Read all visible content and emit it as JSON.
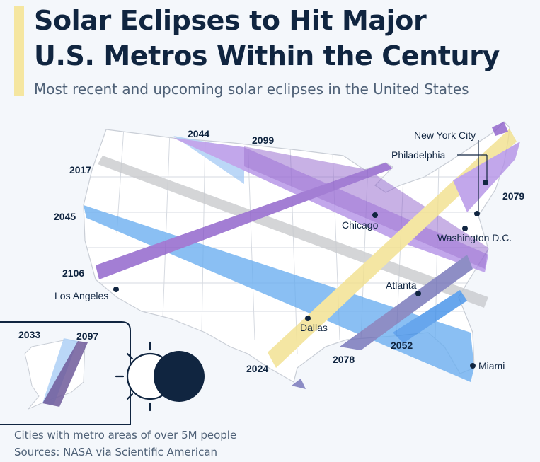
{
  "header": {
    "title_line1": "Solar Eclipses to Hit Major",
    "title_line2": "U.S. Metros Within the Century",
    "subtitle": "Most recent and upcoming solar eclipses in the United States"
  },
  "colors": {
    "yellow": "#f2e08a",
    "purple": "#8a5ac8",
    "light_purple": "#b28fe6",
    "blue": "#6aaef0",
    "light_blue": "#a9cdf5",
    "gray": "#c8cacd",
    "slate_purple": "#6f6fb6",
    "navy": "#102540"
  },
  "eclipses": {
    "e2017": "2017",
    "e2024": "2024",
    "e2033": "2033",
    "e2044": "2044",
    "e2045": "2045",
    "e2052": "2052",
    "e2078": "2078",
    "e2079": "2079",
    "e2097": "2097",
    "e2099": "2099",
    "e2106": "2106"
  },
  "cities": {
    "new_york": "New York City",
    "philadelphia": "Philadelphia",
    "chicago": "Chicago",
    "washington": "Washington D.C.",
    "los_angeles": "Los Angeles",
    "atlanta": "Atlanta",
    "dallas": "Dallas",
    "miami": "Miami"
  },
  "footer": {
    "note": "Cities with metro areas of over 5M people",
    "sources": "Sources: NASA via Scientific American"
  },
  "icons": [
    "eclipse-sun-icon",
    "moon-disc-icon"
  ]
}
